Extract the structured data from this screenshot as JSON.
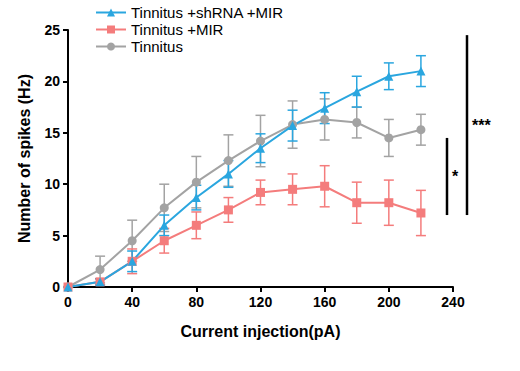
{
  "chart_data": {
    "type": "line",
    "x_label": "Current injection(pA)",
    "y_label": "Number of spikes (Hz)",
    "x": [
      0,
      20,
      40,
      60,
      80,
      100,
      120,
      140,
      160,
      180,
      200,
      220
    ],
    "xlim": [
      0,
      240
    ],
    "xticks": [
      0,
      40,
      80,
      120,
      160,
      200,
      240
    ],
    "ylim": [
      0,
      25
    ],
    "yticks": [
      0,
      5,
      10,
      15,
      20,
      25
    ],
    "grid": false,
    "legend": "top-left",
    "series": [
      {
        "name": "Tinnitus +shRNA +MIR",
        "color": "#2aa6df",
        "marker": "triangle",
        "values": [
          0,
          0.5,
          2.5,
          6,
          8.7,
          11,
          13.5,
          15.7,
          17.4,
          19,
          20.5,
          21
        ],
        "errors": [
          0,
          0.3,
          1,
          1,
          1.2,
          1.3,
          1.4,
          1.5,
          1.5,
          1.5,
          1.3,
          1.5
        ]
      },
      {
        "name": "Tinnitus +MIR",
        "color": "#f47c7c",
        "marker": "square",
        "values": [
          0,
          0.5,
          2.5,
          4.5,
          6,
          7.5,
          9.2,
          9.5,
          9.8,
          8.2,
          8.2,
          7.2
        ],
        "errors": [
          0,
          0.3,
          1.2,
          1.2,
          1.3,
          1.2,
          1.2,
          1.5,
          2,
          2,
          2.2,
          2.2
        ]
      },
      {
        "name": "Tinnitus",
        "color": "#a3a3a3",
        "marker": "circle",
        "values": [
          0,
          1.7,
          4.5,
          7.7,
          10.2,
          12.3,
          14.2,
          15.8,
          16.3,
          16,
          14.5,
          15.3
        ],
        "errors": [
          0,
          1.3,
          2,
          2.3,
          2.5,
          2.5,
          2.5,
          2.3,
          2,
          1.5,
          1.8,
          1.5
        ]
      }
    ],
    "significance": [
      {
        "label": "*",
        "y": [
          7,
          14.5
        ]
      },
      {
        "label": "***",
        "y": [
          7,
          24.5
        ]
      }
    ]
  }
}
